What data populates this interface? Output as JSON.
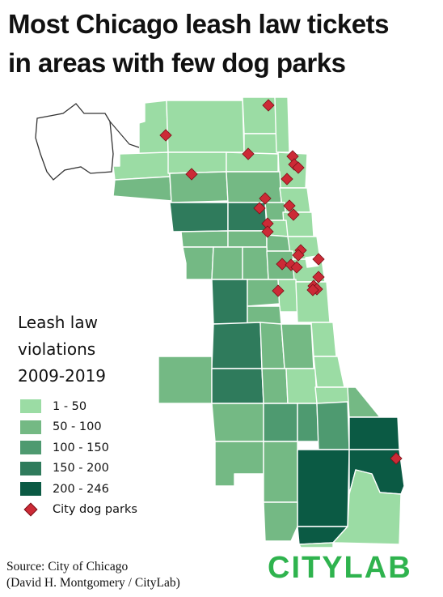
{
  "title": {
    "line1": "Most Chicago leash law tickets",
    "line2": "in areas with few dog parks"
  },
  "legend": {
    "title_lines": [
      "Leash law",
      "violations",
      "2009-2019"
    ],
    "items": [
      {
        "label": "1 - 50",
        "color": "#9bdca4"
      },
      {
        "label": "50 - 100",
        "color": "#74b984"
      },
      {
        "label": "100 - 150",
        "color": "#4e9a70"
      },
      {
        "label": "150 - 200",
        "color": "#2f7b5c"
      },
      {
        "label": "200 - 246",
        "color": "#0b5a44"
      }
    ],
    "marker_label": "City dog parks",
    "marker_color": "#cc2a36"
  },
  "source": {
    "line1": "Source: City of Chicago",
    "line2": "(David H. Montgomery / CityLab)"
  },
  "logo": {
    "text": "CITYLAB",
    "color": "#2fb34e"
  },
  "map": {
    "colors": [
      "#9bdca4",
      "#74b984",
      "#4e9a70",
      "#2f7b5c",
      "#0b5a44"
    ],
    "border_color": "#ffffff",
    "outline_color": "#333333",
    "marker_count": 26
  }
}
